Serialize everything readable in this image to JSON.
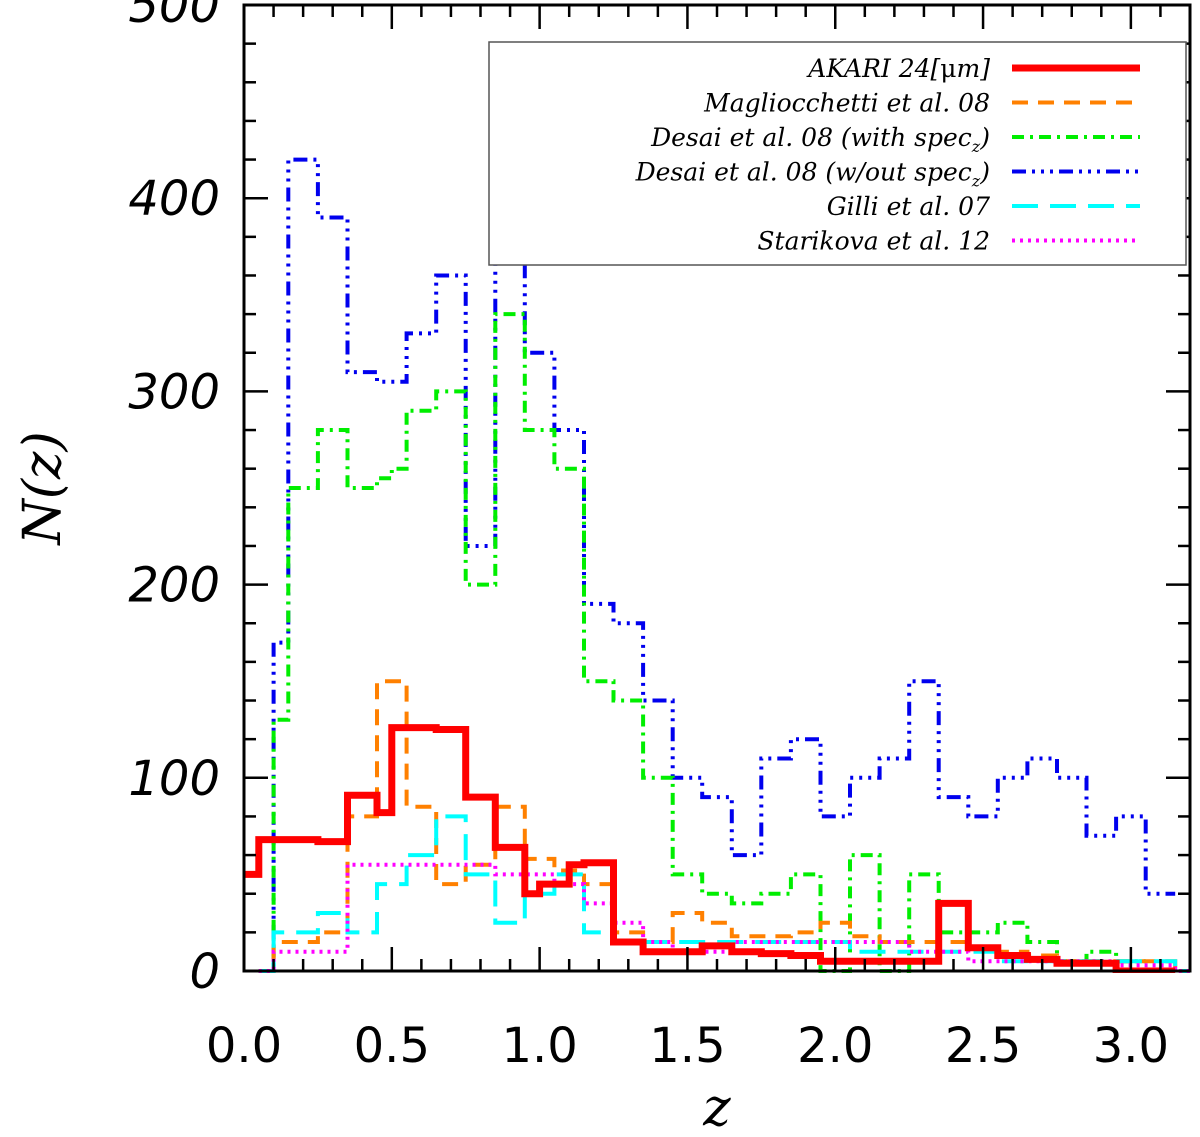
{
  "chart_data": {
    "type": "line",
    "step": true,
    "xlabel": "z",
    "ylabel": "N(z)",
    "xlim": [
      0.0,
      3.2
    ],
    "ylim": [
      0,
      500
    ],
    "xticks": [
      0.0,
      0.5,
      1.0,
      1.5,
      2.0,
      2.5,
      3.0
    ],
    "xtick_labels": [
      "0.0",
      "0.5",
      "1.0",
      "1.5",
      "2.0",
      "2.5",
      "3.0"
    ],
    "yticks": [
      0,
      100,
      200,
      300,
      400,
      500
    ],
    "ytick_labels": [
      "0",
      "100",
      "200",
      "300",
      "400",
      "500"
    ],
    "grid": false,
    "legend_position": "top-right",
    "series": [
      {
        "name": "AKARI 24[μm]",
        "color": "#ff0000",
        "style": "solid",
        "edges": [
          0.0,
          0.05,
          0.25,
          0.35,
          0.45,
          0.5,
          0.65,
          0.75,
          0.85,
          0.95,
          1.0,
          1.1,
          1.15,
          1.25,
          1.35,
          1.45,
          1.55,
          1.65,
          1.75,
          1.85,
          1.95,
          2.05,
          2.15,
          2.25,
          2.35,
          2.45,
          2.55,
          2.65,
          2.75,
          2.85,
          2.95,
          3.05,
          3.15
        ],
        "values": [
          50,
          68,
          67,
          91,
          82,
          126,
          125,
          90,
          64,
          40,
          45,
          55,
          56,
          15,
          10,
          10,
          13,
          10,
          9,
          8,
          5,
          5,
          5,
          5,
          35,
          12,
          8,
          6,
          4,
          4,
          0,
          0
        ]
      },
      {
        "name": "Magliocchetti et al. 08",
        "color": "#ff8000",
        "style": "dashed",
        "edges": [
          0.05,
          0.1,
          0.25,
          0.35,
          0.45,
          0.55,
          0.65,
          0.75,
          0.85,
          0.95,
          1.05,
          1.15,
          1.25,
          1.35,
          1.45,
          1.55,
          1.65,
          1.75,
          1.85,
          1.95,
          2.05,
          2.15,
          2.25,
          2.35,
          2.45,
          2.55,
          2.65,
          2.75,
          2.85,
          2.95,
          3.05,
          3.15,
          3.2
        ],
        "values": [
          0,
          15,
          20,
          80,
          150,
          85,
          45,
          55,
          85,
          58,
          52,
          45,
          20,
          15,
          30,
          25,
          18,
          18,
          20,
          25,
          18,
          15,
          15,
          15,
          12,
          10,
          8,
          5,
          5,
          5,
          5,
          0
        ]
      },
      {
        "name": "Desai et al. 08 (with spec_z)",
        "color": "#00ee00",
        "style": "dashdot",
        "edges": [
          0.05,
          0.1,
          0.15,
          0.25,
          0.35,
          0.45,
          0.5,
          0.55,
          0.65,
          0.75,
          0.8,
          0.85,
          0.95,
          1.05,
          1.15,
          1.25,
          1.35,
          1.45,
          1.55,
          1.65,
          1.75,
          1.85,
          1.95,
          2.05,
          2.15,
          2.25,
          2.35,
          2.45,
          2.55,
          2.65,
          2.75,
          2.85,
          2.95,
          3.05
        ],
        "values": [
          0,
          130,
          250,
          280,
          250,
          255,
          260,
          290,
          300,
          200,
          200,
          340,
          280,
          260,
          150,
          140,
          100,
          50,
          40,
          35,
          40,
          50,
          0,
          60,
          0,
          50,
          20,
          20,
          25,
          15,
          5,
          10,
          5
        ]
      },
      {
        "name": "Desai et al. 08 (w/out spec_z)",
        "color": "#0000ee",
        "style": "dashdotdotdot",
        "edges": [
          0.05,
          0.1,
          0.15,
          0.25,
          0.35,
          0.45,
          0.5,
          0.55,
          0.65,
          0.75,
          0.8,
          0.85,
          0.95,
          1.05,
          1.15,
          1.25,
          1.35,
          1.45,
          1.55,
          1.65,
          1.75,
          1.85,
          1.95,
          2.05,
          2.15,
          2.25,
          2.35,
          2.45,
          2.55,
          2.65,
          2.75,
          2.85,
          2.95,
          3.05,
          3.15
        ],
        "values": [
          0,
          170,
          420,
          390,
          310,
          305,
          305,
          330,
          360,
          220,
          220,
          370,
          320,
          280,
          190,
          180,
          140,
          100,
          90,
          60,
          110,
          120,
          80,
          100,
          110,
          150,
          90,
          80,
          100,
          110,
          100,
          70,
          80,
          40
        ]
      },
      {
        "name": "Gilli et al. 07",
        "color": "#00ffff",
        "style": "longdash",
        "edges": [
          0.05,
          0.1,
          0.25,
          0.35,
          0.45,
          0.55,
          0.65,
          0.75,
          0.85,
          0.95,
          1.05,
          1.15,
          1.25,
          1.35,
          1.45,
          1.55,
          1.65,
          1.75,
          1.85,
          1.95,
          2.05,
          2.15,
          2.25,
          2.35,
          2.45,
          2.55,
          2.65,
          2.75,
          2.85,
          2.95,
          3.05,
          3.15,
          3.2
        ],
        "values": [
          0,
          20,
          30,
          20,
          45,
          60,
          80,
          50,
          25,
          40,
          50,
          20,
          15,
          15,
          15,
          15,
          15,
          15,
          15,
          15,
          10,
          10,
          10,
          10,
          10,
          5,
          5,
          5,
          5,
          5,
          5,
          0
        ]
      },
      {
        "name": "Starikova et al. 12",
        "color": "#ff00ff",
        "style": "dotted",
        "edges": [
          0.05,
          0.1,
          0.35,
          0.55,
          0.75,
          0.85,
          1.05,
          1.15,
          1.25,
          1.35,
          1.45,
          1.55,
          1.65,
          1.75,
          1.85,
          1.95,
          2.05,
          2.15,
          2.25,
          2.35,
          2.45,
          2.55,
          2.65,
          2.75,
          2.85,
          2.95,
          3.05,
          3.15,
          3.2
        ],
        "values": [
          0,
          10,
          55,
          55,
          55,
          50,
          45,
          35,
          25,
          15,
          10,
          10,
          15,
          15,
          15,
          15,
          15,
          15,
          10,
          10,
          5,
          5,
          5,
          5,
          5,
          3,
          3,
          0
        ]
      }
    ]
  },
  "legend": {
    "items": [
      {
        "prefix": "AKARI 24[",
        "mu": "μ",
        "suffix": "m]",
        "color": "#ff0000",
        "style": "solid"
      },
      {
        "label": "Magliocchetti et al. 08",
        "color": "#ff8000",
        "style": "dashed"
      },
      {
        "label": "Desai et al. 08 (with spec",
        "sub": "z",
        "close": ")",
        "color": "#00ee00",
        "style": "dashdot"
      },
      {
        "label": "Desai et al. 08 (w/out spec",
        "sub": "z",
        "close": ")",
        "color": "#0000ee",
        "style": "dashdotdotdot"
      },
      {
        "label": "Gilli et al. 07",
        "color": "#00ffff",
        "style": "longdash"
      },
      {
        "label": "Starikova et al. 12",
        "color": "#ff00ff",
        "style": "dotted"
      }
    ]
  }
}
